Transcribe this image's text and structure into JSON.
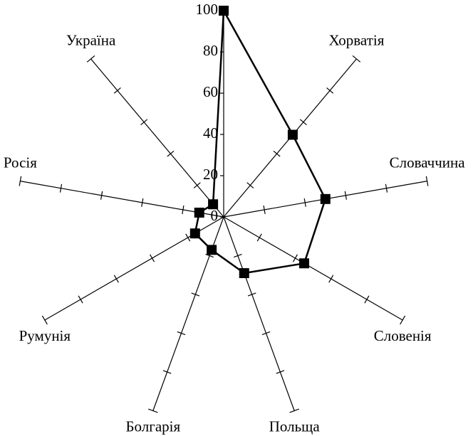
{
  "chart_data": {
    "type": "radar",
    "categories": [
      null,
      "Хорватія",
      "Словаччина",
      "Словенія",
      "Польща",
      "Болгарія",
      "Румунія",
      "Росія",
      "Україна"
    ],
    "values": [
      100,
      52,
      50,
      45,
      29,
      17,
      16,
      12,
      8
    ],
    "color": "#000000",
    "ylim": [
      0,
      100
    ],
    "yticks": [
      0,
      20,
      40,
      60,
      80,
      100
    ]
  }
}
